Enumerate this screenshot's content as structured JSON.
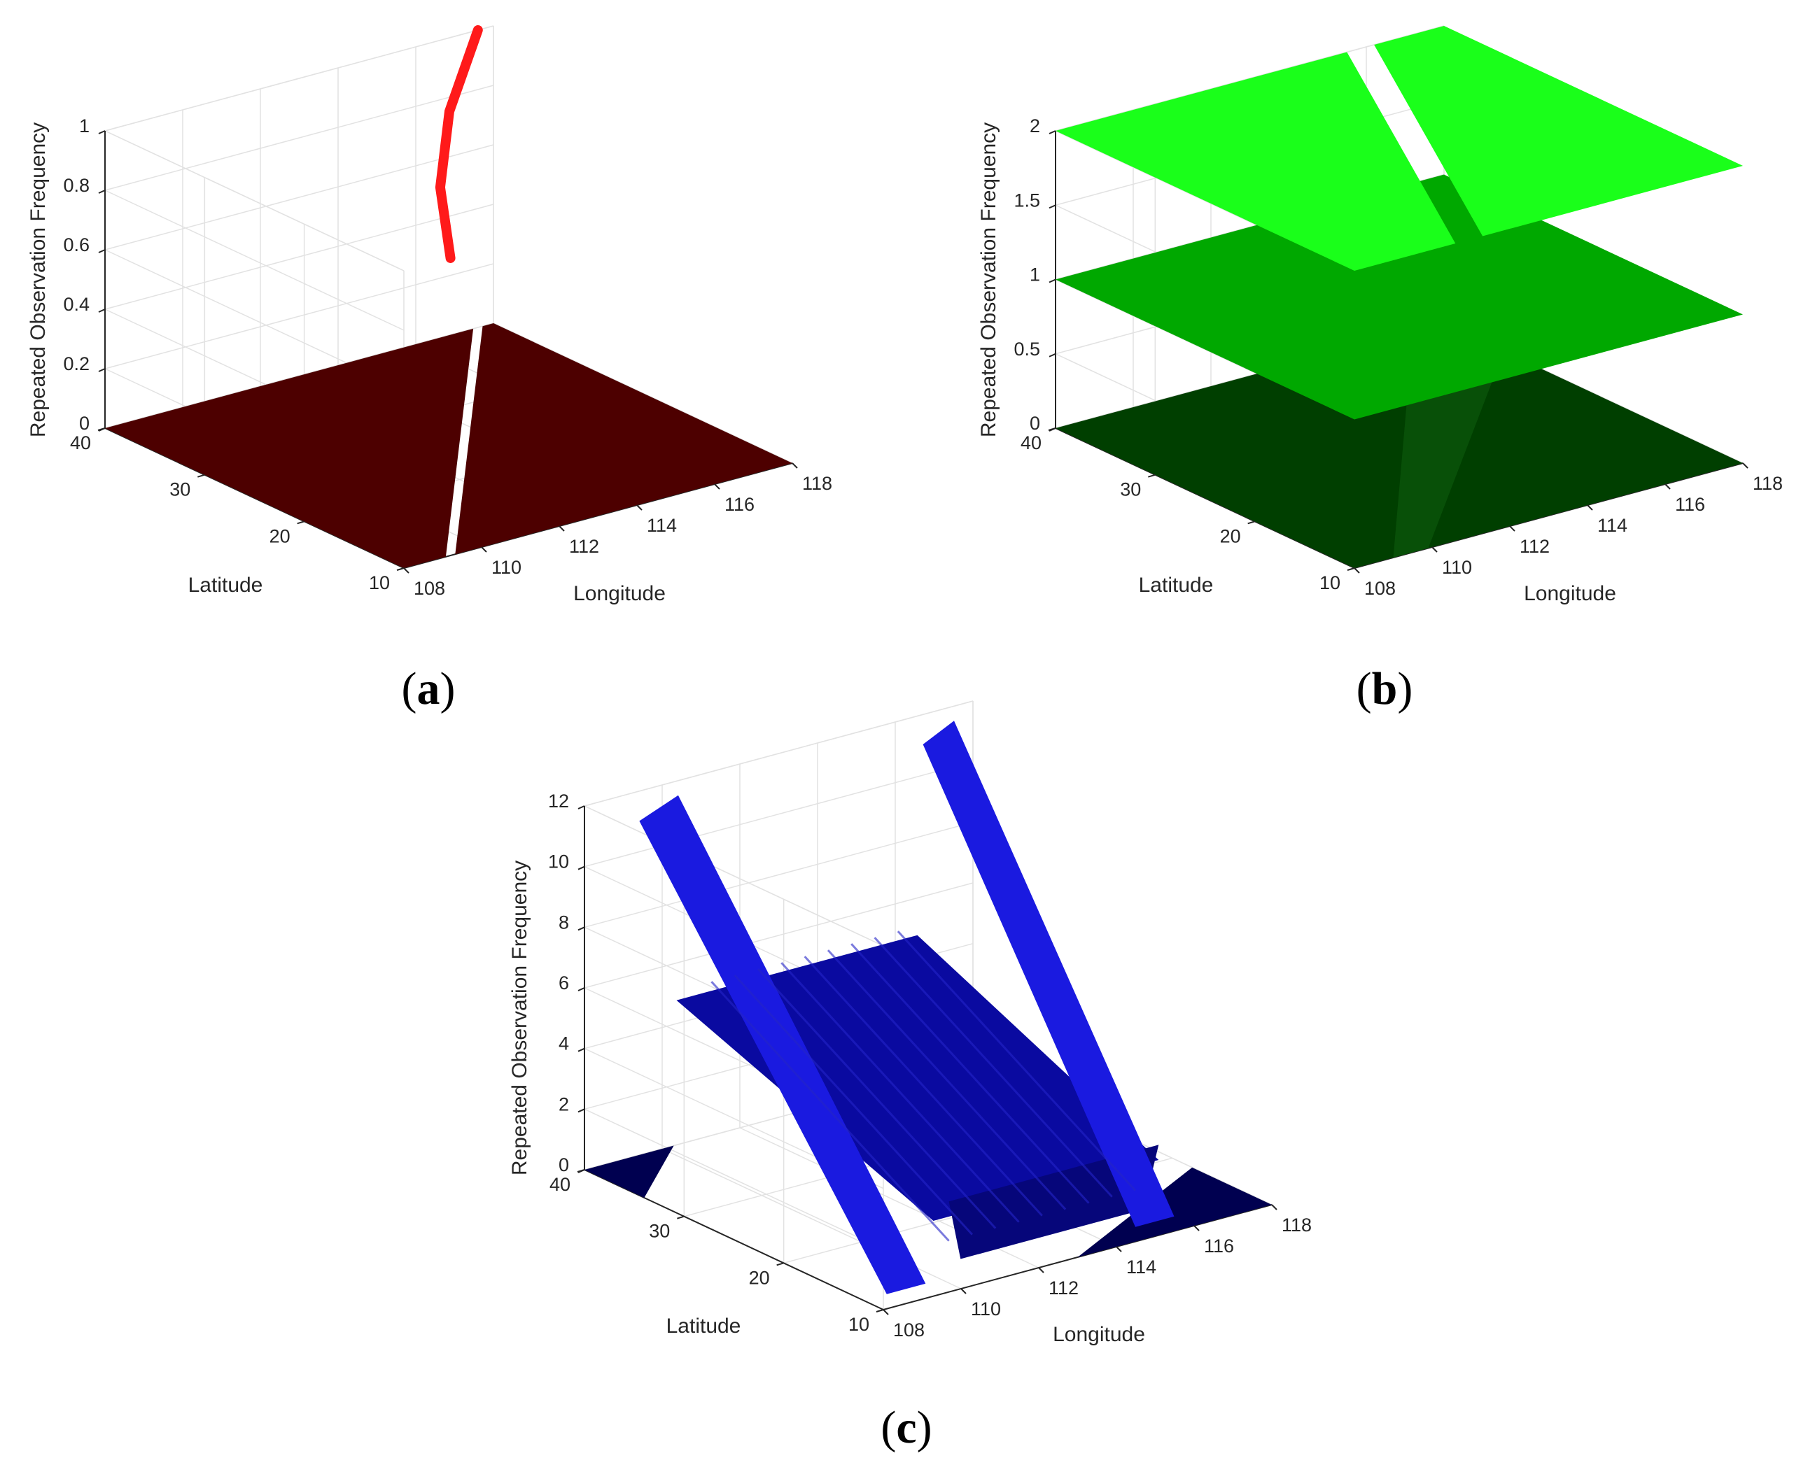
{
  "chart_data": [
    {
      "type": "scatter3d",
      "panel": "a",
      "title": "",
      "xlabel": "Longitude",
      "ylabel": "Latitude",
      "zlabel": "Repeated Observation Frequency",
      "xlim": [
        108,
        118
      ],
      "ylim": [
        10,
        40
      ],
      "zlim": [
        0,
        1
      ],
      "xticks": [
        "108",
        "110",
        "112",
        "114",
        "116",
        "118"
      ],
      "yticks": [
        "10",
        "20",
        "30",
        "40"
      ],
      "zticks": [
        "0",
        "0.2",
        "0.4",
        "0.6",
        "0.8",
        "1"
      ],
      "grid": true,
      "series": [
        {
          "level": 0,
          "color": "#4d0000",
          "region": "lon 108-118, lat 10-40 except a narrow strip",
          "strip_lon_at_lat10": 109.2,
          "strip_lon_at_lat40": 117.6
        },
        {
          "level": 1,
          "color": "#ff1a1a",
          "points": [
            [
              109.2,
              10,
              1
            ],
            [
              111.5,
              20,
              1
            ],
            [
              114.3,
              30,
              1
            ],
            [
              117.6,
              40,
              1
            ]
          ]
        }
      ]
    },
    {
      "type": "scatter3d",
      "panel": "b",
      "title": "",
      "xlabel": "Longitude",
      "ylabel": "Latitude",
      "zlabel": "Repeated Observation Frequency",
      "xlim": [
        108,
        118
      ],
      "ylim": [
        10,
        40
      ],
      "zlim": [
        0,
        2
      ],
      "xticks": [
        "108",
        "110",
        "112",
        "114",
        "116",
        "118"
      ],
      "yticks": [
        "10",
        "20",
        "30",
        "40"
      ],
      "zticks": [
        "0",
        "0.5",
        "1",
        "1.5",
        "2"
      ],
      "grid": true,
      "series": [
        {
          "level": 0,
          "color": "#003f00",
          "region": "lon 108-118, lat 10-40"
        },
        {
          "level": 1,
          "color": "#00a800",
          "region": "lon 108-118, lat 10-40"
        },
        {
          "level": 2,
          "color": "#1aff1a",
          "region": "lon 108-118, lat 10-40 except a narrow strip"
        }
      ]
    },
    {
      "type": "scatter3d",
      "panel": "c",
      "title": "",
      "xlabel": "Longitude",
      "ylabel": "Latitude",
      "zlabel": "Repeated Observation Frequency",
      "xlim": [
        108,
        118
      ],
      "ylim": [
        10,
        40
      ],
      "zlim": [
        0,
        12
      ],
      "xticks": [
        "108",
        "110",
        "112",
        "114",
        "116",
        "118"
      ],
      "yticks": [
        "10",
        "20",
        "30",
        "40"
      ],
      "zticks": [
        "0",
        "2",
        "4",
        "6",
        "8",
        "10",
        "12"
      ],
      "grid": true,
      "series": [
        {
          "level": 0,
          "color": "#000050",
          "region": "two corner triangles: near lon 108-110 lat 34-40 and lon 113-118 lat 10-18"
        },
        {
          "level": "2-6",
          "color": "#0a0aa0",
          "region": "central band lon 109-116, lat 12-38"
        },
        {
          "level": "6-12",
          "color": "#1a1ae0",
          "region": "edge bands near lon 108.5-110 and lon 115-117"
        }
      ]
    }
  ],
  "panel_labels": [
    {
      "open": "(",
      "letter": "a",
      "close": ")"
    },
    {
      "open": "(",
      "letter": "b",
      "close": ")"
    },
    {
      "open": "(",
      "letter": "c",
      "close": ")"
    }
  ]
}
